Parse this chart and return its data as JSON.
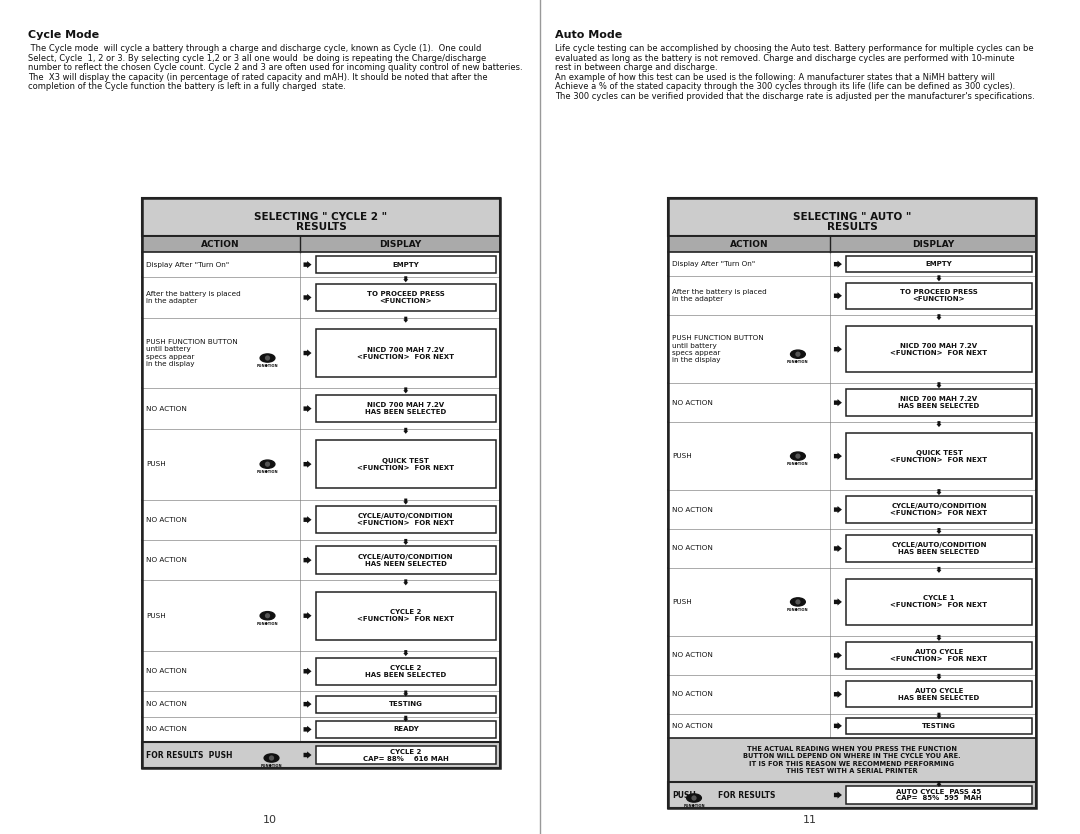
{
  "bg_color": "#ffffff",
  "left_page_num": "10",
  "right_page_num": "11",
  "left_title": "Cycle Mode",
  "left_body_lines": [
    " The Cycle mode  will cycle a battery through a charge and discharge cycle, known as Cycle (1).  One could",
    "Select, Cycle  1, 2 or 3. By selecting cycle 1,2 or 3 all one would  be doing is repeating the Charge/discharge",
    "number to reflect the chosen Cycle count. Cycle 2 and 3 are often used for incoming quality control of new batteries.",
    "The  X3 will display the capacity (in percentage of rated capacity and mAH). It should be noted that after the",
    "completion of the Cycle function the battery is left in a fully charged  state."
  ],
  "right_title": "Auto Mode",
  "right_body_lines": [
    "Life cycle testing can be accomplished by choosing the Auto test. Battery performance for multiple cycles can be",
    "evaluated as long as the battery is not removed. Charge and discharge cycles are performed with 10-minute",
    "rest in between charge and discharge.",
    "An example of how this test can be used is the following: A manufacturer states that a NiMH battery will",
    "Achieve a % of the stated capacity through the 300 cycles through its life (life can be defined as 300 cycles).",
    "The 300 cycles can be verified provided that the discharge rate is adjusted per the manufacturer's specifications."
  ],
  "cycle_table_title_line1": "SELECTING \" CYCLE 2 \"",
  "cycle_table_title_line2": "RESULTS",
  "auto_table_title_line1": "SELECTING \" AUTO \"",
  "auto_table_title_line2": "RESULTS",
  "cycle_rows": [
    {
      "action": "Display After \"Turn On\"",
      "display": "EMPTY",
      "has_button": false,
      "multi_action": false
    },
    {
      "action": "After the battery is placed\nin the adapter",
      "display": "TO PROCEED PRESS\n<FUNCTION>",
      "has_button": false,
      "multi_action": false
    },
    {
      "action": "PUSH FUNCTION BUTTON\nuntil battery\nspecs appear\nin the display",
      "display": "NICD 700 MAH 7.2V\n<FUNCTION>  FOR NEXT",
      "has_button": true,
      "multi_action": true
    },
    {
      "action": "NO ACTION",
      "display": "NICD 700 MAH 7.2V\nHAS BEEN SELECTED",
      "has_button": false,
      "multi_action": false
    },
    {
      "action": "PUSH",
      "display": "QUICK TEST\n<FUNCTION>  FOR NEXT",
      "has_button": true,
      "multi_action": false
    },
    {
      "action": "NO ACTION",
      "display": "CYCLE/AUTO/CONDITION\n<FUNCTION>  FOR NEXT",
      "has_button": false,
      "multi_action": false
    },
    {
      "action": "NO ACTION",
      "display": "CYCLE/AUTO/CONDITION\nHAS NEEN SELECTED",
      "has_button": false,
      "multi_action": false
    },
    {
      "action": "PUSH",
      "display": "CYCLE 2\n<FUNCTION>  FOR NEXT",
      "has_button": true,
      "multi_action": false
    },
    {
      "action": "NO ACTION",
      "display": "CYCLE 2\nHAS BEEN SELECTED",
      "has_button": false,
      "multi_action": false
    },
    {
      "action": "NO ACTION",
      "display": "TESTING",
      "has_button": false,
      "multi_action": false
    },
    {
      "action": "NO ACTION",
      "display": "READY",
      "has_button": false,
      "multi_action": false
    }
  ],
  "cycle_footer_display": "CYCLE 2\nCAP= 88%    616 MAH",
  "auto_rows": [
    {
      "action": "Display After \"Turn On\"",
      "display": "EMPTY",
      "has_button": false,
      "multi_action": false
    },
    {
      "action": "After the battery is placed\nin the adapter",
      "display": "TO PROCEED PRESS\n<FUNCTION>",
      "has_button": false,
      "multi_action": false
    },
    {
      "action": "PUSH FUNCTION BUTTON\nuntil battery\nspecs appear\nin the display",
      "display": "NICD 700 MAH 7.2V\n<FUNCTION>  FOR NEXT",
      "has_button": true,
      "multi_action": true
    },
    {
      "action": "NO ACTION",
      "display": "NICD 700 MAH 7.2V\nHAS BEEN SELECTED",
      "has_button": false,
      "multi_action": false
    },
    {
      "action": "PUSH",
      "display": "QUICK TEST\n<FUNCTION>  FOR NEXT",
      "has_button": true,
      "multi_action": false
    },
    {
      "action": "NO ACTION",
      "display": "CYCLE/AUTO/CONDITION\n<FUNCTION>  FOR NEXT",
      "has_button": false,
      "multi_action": false
    },
    {
      "action": "NO ACTION",
      "display": "CYCLE/AUTO/CONDITION\nHAS BEEN SELECTED",
      "has_button": false,
      "multi_action": false
    },
    {
      "action": "PUSH",
      "display": "CYCLE 1\n<FUNCTION>  FOR NEXT",
      "has_button": true,
      "multi_action": false
    },
    {
      "action": "NO ACTION",
      "display": "AUTO CYCLE\n<FUNCTION>  FOR NEXT",
      "has_button": false,
      "multi_action": false
    },
    {
      "action": "NO ACTION",
      "display": "AUTO CYCLE\nHAS BEEN SELECTED",
      "has_button": false,
      "multi_action": false
    },
    {
      "action": "NO ACTION",
      "display": "TESTING",
      "has_button": false,
      "multi_action": false
    }
  ],
  "auto_warning": "THE ACTUAL READING WHEN YOU PRESS THE FUNCTION\nBUTTON WILL DEPEND ON WHERE IN THE CYCLE YOU ARE.\nIT IS FOR THIS REASON WE RECOMMEND PERFORMING\nTHIS TEST WITH A SERIAL PRINTER",
  "auto_footer_display": "AUTO CYCLE  PASS 45\nCAP=  85%  595  MAH"
}
